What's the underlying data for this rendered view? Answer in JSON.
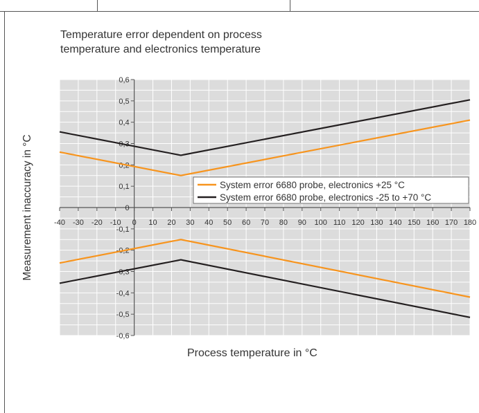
{
  "chart_data": {
    "type": "line",
    "title": "Temperature error dependent on process temperature and electronics temperature",
    "title_lines": [
      "Temperature error dependent on process",
      "temperature and electronics temperature"
    ],
    "xlabel": "Process temperature in °C",
    "ylabel": "Measurement inaccuracy in °C",
    "xlim": [
      -40,
      180
    ],
    "ylim": [
      -0.6,
      0.6
    ],
    "x_ticks": [
      -40,
      -30,
      -20,
      -10,
      0,
      10,
      20,
      30,
      40,
      50,
      60,
      70,
      80,
      90,
      100,
      110,
      120,
      130,
      140,
      150,
      160,
      170,
      180
    ],
    "y_ticks": [
      0.6,
      0.5,
      0.4,
      0.3,
      0.2,
      0.1,
      0,
      -0.1,
      -0.2,
      -0.3,
      -0.4,
      -0.5,
      -0.6
    ],
    "x_tick_labels": [
      "-40",
      "-30",
      "-20",
      "-10",
      "0",
      "10",
      "20",
      "30",
      "40",
      "50",
      "60",
      "70",
      "80",
      "90",
      "100",
      "110",
      "120",
      "130",
      "140",
      "150",
      "160",
      "170",
      "180"
    ],
    "y_tick_labels": [
      "0,6",
      "0,5",
      "0,4",
      "0,3",
      "0,2",
      "0,1",
      "0",
      "-0,1",
      "-0,2",
      "-0,3",
      "-0,4",
      "-0,5",
      "-0,6"
    ],
    "grid": true,
    "legend_position": "right-middle",
    "series": [
      {
        "name": "System error 6680 probe, electronics +25 °C",
        "color": "#f7941d",
        "line": "upper",
        "x": [
          -40,
          25,
          180
        ],
        "y": [
          0.26,
          0.15,
          0.41
        ]
      },
      {
        "name": "System error 6680 probe, electronics +25 °C",
        "color": "#f7941d",
        "line": "lower",
        "x": [
          -40,
          25,
          180
        ],
        "y": [
          -0.26,
          -0.15,
          -0.42
        ]
      },
      {
        "name": "System error 6680 probe, electronics -25 to +70 °C",
        "color": "#231f20",
        "line": "upper",
        "x": [
          -40,
          25,
          180
        ],
        "y": [
          0.355,
          0.245,
          0.505
        ]
      },
      {
        "name": "System error 6680 probe, electronics -25 to +70 °C",
        "color": "#231f20",
        "line": "lower",
        "x": [
          -40,
          25,
          180
        ],
        "y": [
          -0.355,
          -0.245,
          -0.515
        ]
      }
    ],
    "legend": [
      {
        "label": "System error 6680 probe, electronics +25 °C",
        "color": "#f7941d"
      },
      {
        "label": "System error 6680 probe, electronics -25 to +70 °C",
        "color": "#231f20"
      }
    ]
  },
  "colors": {
    "plot_background": "#dcdcdc",
    "grid": "#ffffff",
    "axis": "#555555",
    "frame": "#555555"
  }
}
